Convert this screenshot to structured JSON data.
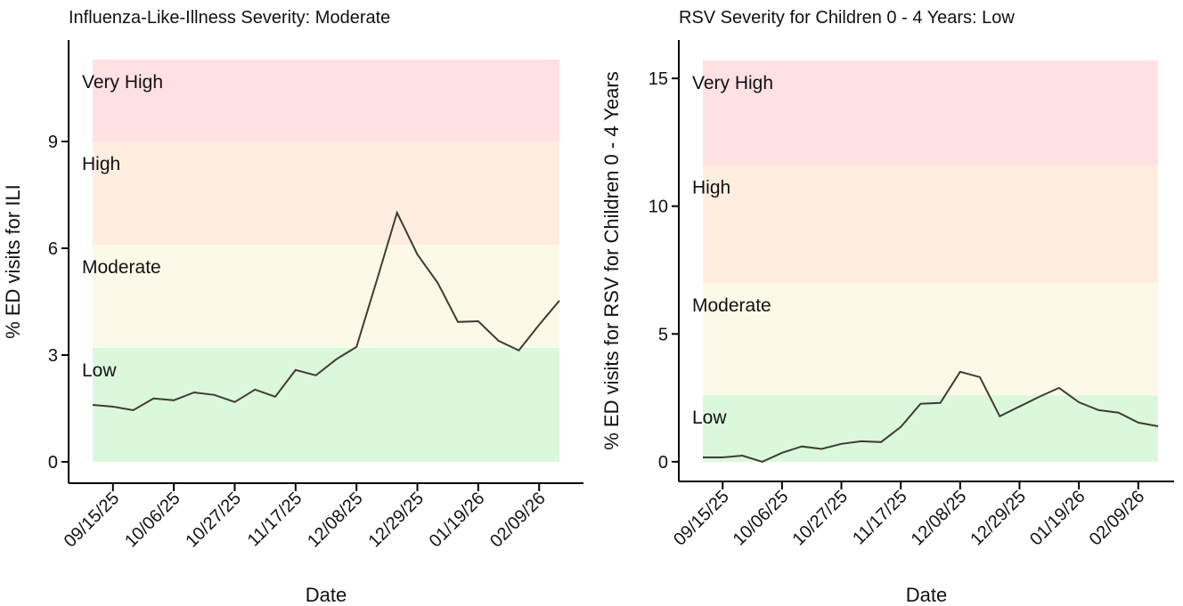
{
  "chart_data": [
    {
      "type": "line",
      "title": "Influenza-Like-Illness Severity: Moderate",
      "xlabel": "Date",
      "ylabel": "% ED visits for ILI",
      "x": [
        "09/08/25",
        "09/15/25",
        "09/22/25",
        "09/29/25",
        "10/06/25",
        "10/13/25",
        "10/20/25",
        "10/27/25",
        "11/03/25",
        "11/10/25",
        "11/17/25",
        "11/24/25",
        "12/01/25",
        "12/08/25",
        "12/15/25",
        "12/22/25",
        "12/29/25",
        "01/05/26",
        "01/12/26",
        "01/19/26",
        "01/26/26",
        "02/02/26",
        "02/09/26",
        "02/16/26"
      ],
      "values": [
        1.6,
        1.55,
        1.45,
        1.78,
        1.73,
        1.95,
        1.88,
        1.68,
        2.03,
        1.83,
        2.58,
        2.43,
        2.88,
        3.23,
        5.1,
        7.0,
        5.83,
        5.03,
        3.93,
        3.95,
        3.4,
        3.13,
        3.85,
        4.53
      ],
      "color": "#3d3d33",
      "xticks": [
        "09/15/25",
        "10/06/25",
        "10/27/25",
        "11/17/25",
        "12/08/25",
        "12/29/25",
        "01/19/26",
        "02/09/26"
      ],
      "ylim": [
        -0.6,
        11.85
      ],
      "yticks": [
        0,
        3,
        6,
        9
      ],
      "bands": [
        {
          "label": "Low",
          "from": 0,
          "to": 3.2,
          "color": "#dcf8dc"
        },
        {
          "label": "Moderate",
          "from": 3.2,
          "to": 6.1,
          "color": "#fdf9e8"
        },
        {
          "label": "High",
          "from": 6.1,
          "to": 9.0,
          "color": "#ffeee0"
        },
        {
          "label": "Very High",
          "from": 9.0,
          "to": 11.3,
          "color": "#ffe1e4"
        }
      ]
    },
    {
      "type": "line",
      "title": "RSV Severity for Children 0 - 4 Years: Low",
      "xlabel": "Date",
      "ylabel": "% ED visits for RSV for Children 0 - 4 Years",
      "x": [
        "09/08/25",
        "09/15/25",
        "09/22/25",
        "09/29/25",
        "10/06/25",
        "10/13/25",
        "10/20/25",
        "10/27/25",
        "11/03/25",
        "11/10/25",
        "11/17/25",
        "11/24/25",
        "12/01/25",
        "12/08/25",
        "12/15/25",
        "12/22/25",
        "12/29/25",
        "01/05/26",
        "01/12/26",
        "01/19/26",
        "01/26/26",
        "02/02/26",
        "02/09/26",
        "02/16/26"
      ],
      "values": [
        0.17,
        0.17,
        0.24,
        0,
        0.35,
        0.6,
        0.5,
        0.7,
        0.8,
        0.77,
        1.36,
        2.27,
        2.3,
        3.52,
        3.31,
        1.78,
        2.16,
        2.54,
        2.89,
        2.33,
        2.02,
        1.92,
        1.53,
        1.39
      ],
      "color": "#3d3d33",
      "xticks": [
        "09/15/25",
        "10/06/25",
        "10/27/25",
        "11/17/25",
        "12/08/25",
        "12/29/25",
        "01/19/26",
        "02/09/26"
      ],
      "ylim": [
        -0.77,
        16.5
      ],
      "yticks": [
        0,
        5,
        10,
        15
      ],
      "bands": [
        {
          "label": "Low",
          "from": 0,
          "to": 2.6,
          "color": "#dcf8dc"
        },
        {
          "label": "Moderate",
          "from": 2.6,
          "to": 7.0,
          "color": "#fdf9e8"
        },
        {
          "label": "High",
          "from": 7.0,
          "to": 11.6,
          "color": "#ffeee0"
        },
        {
          "label": "Very High",
          "from": 11.6,
          "to": 15.7,
          "color": "#ffe1e4"
        }
      ]
    }
  ]
}
